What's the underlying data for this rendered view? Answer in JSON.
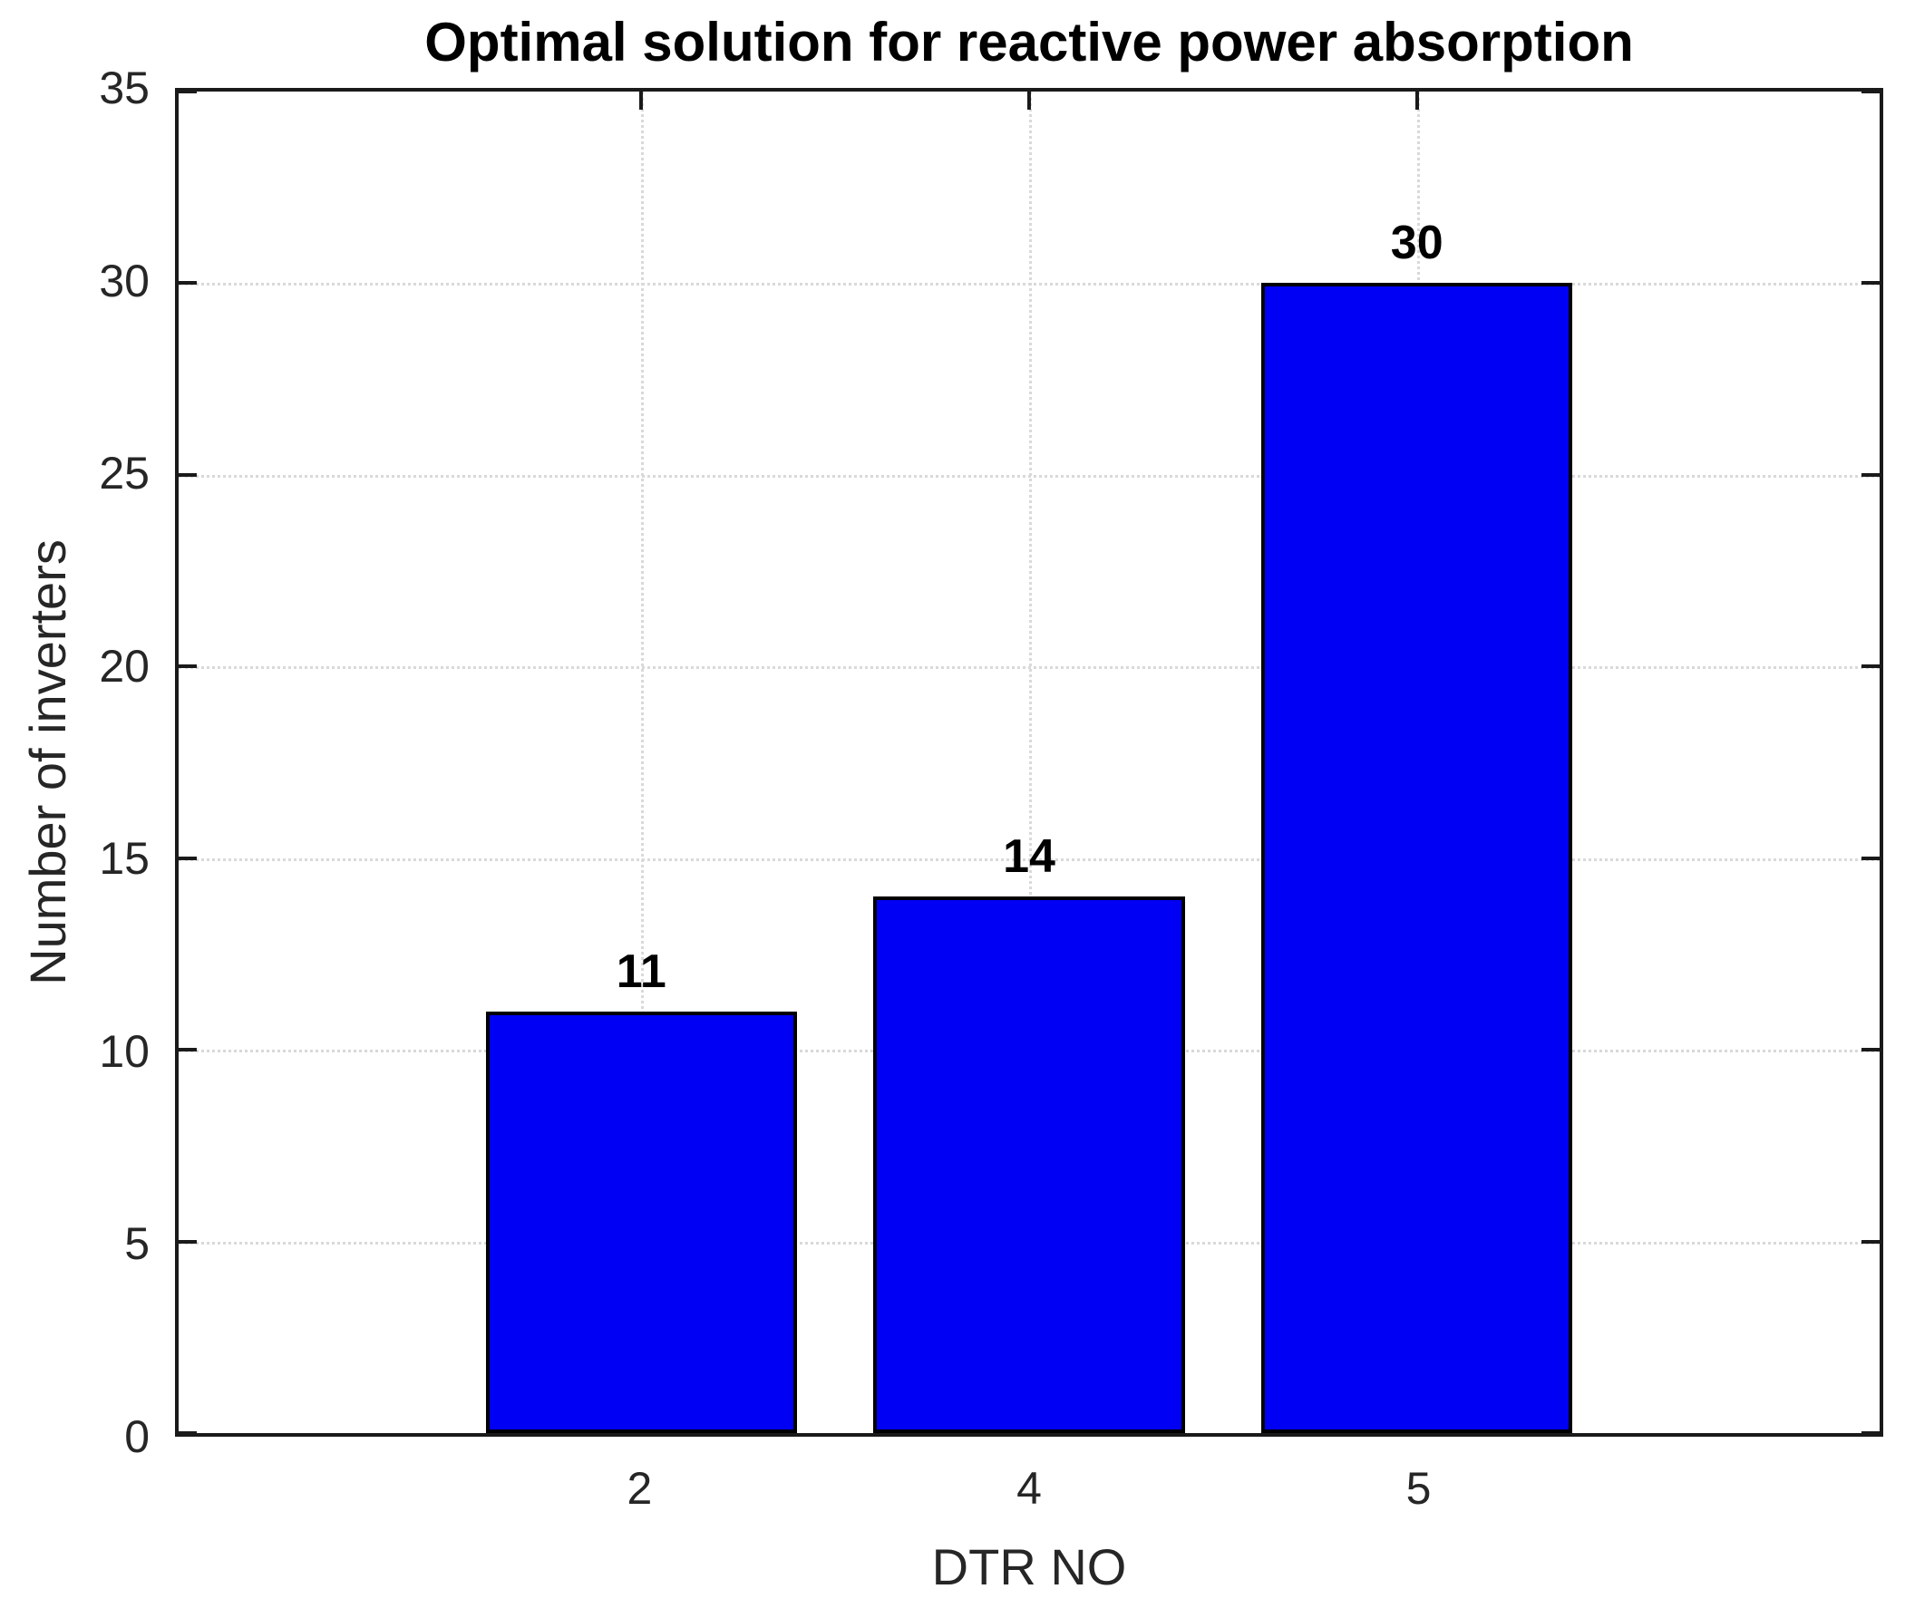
{
  "chart_data": {
    "type": "bar",
    "title": "Optimal solution for reactive power absorption",
    "xlabel": "DTR NO",
    "ylabel": "Number of inverters",
    "categories": [
      "2",
      "4",
      "5"
    ],
    "values": [
      11,
      14,
      30
    ],
    "bar_value_labels": [
      "11",
      "14",
      "30"
    ],
    "ylim": [
      0,
      35
    ],
    "yticks": [
      0,
      5,
      10,
      15,
      20,
      25,
      30,
      35
    ],
    "ytick_labels": [
      "0",
      "5",
      "10",
      "15",
      "20",
      "25",
      "30",
      "35"
    ],
    "grid": true,
    "legend": "none",
    "bar_color": "#0000F5",
    "bar_edge_color": "#000000",
    "grid_color": "#D9D9D9",
    "axis_color": "#1A1A1A",
    "background_color": "#FFFFFF",
    "layout": {
      "bar_center_fractions": [
        0.272,
        0.5,
        0.728
      ],
      "bar_width_fraction": 0.183
    }
  }
}
